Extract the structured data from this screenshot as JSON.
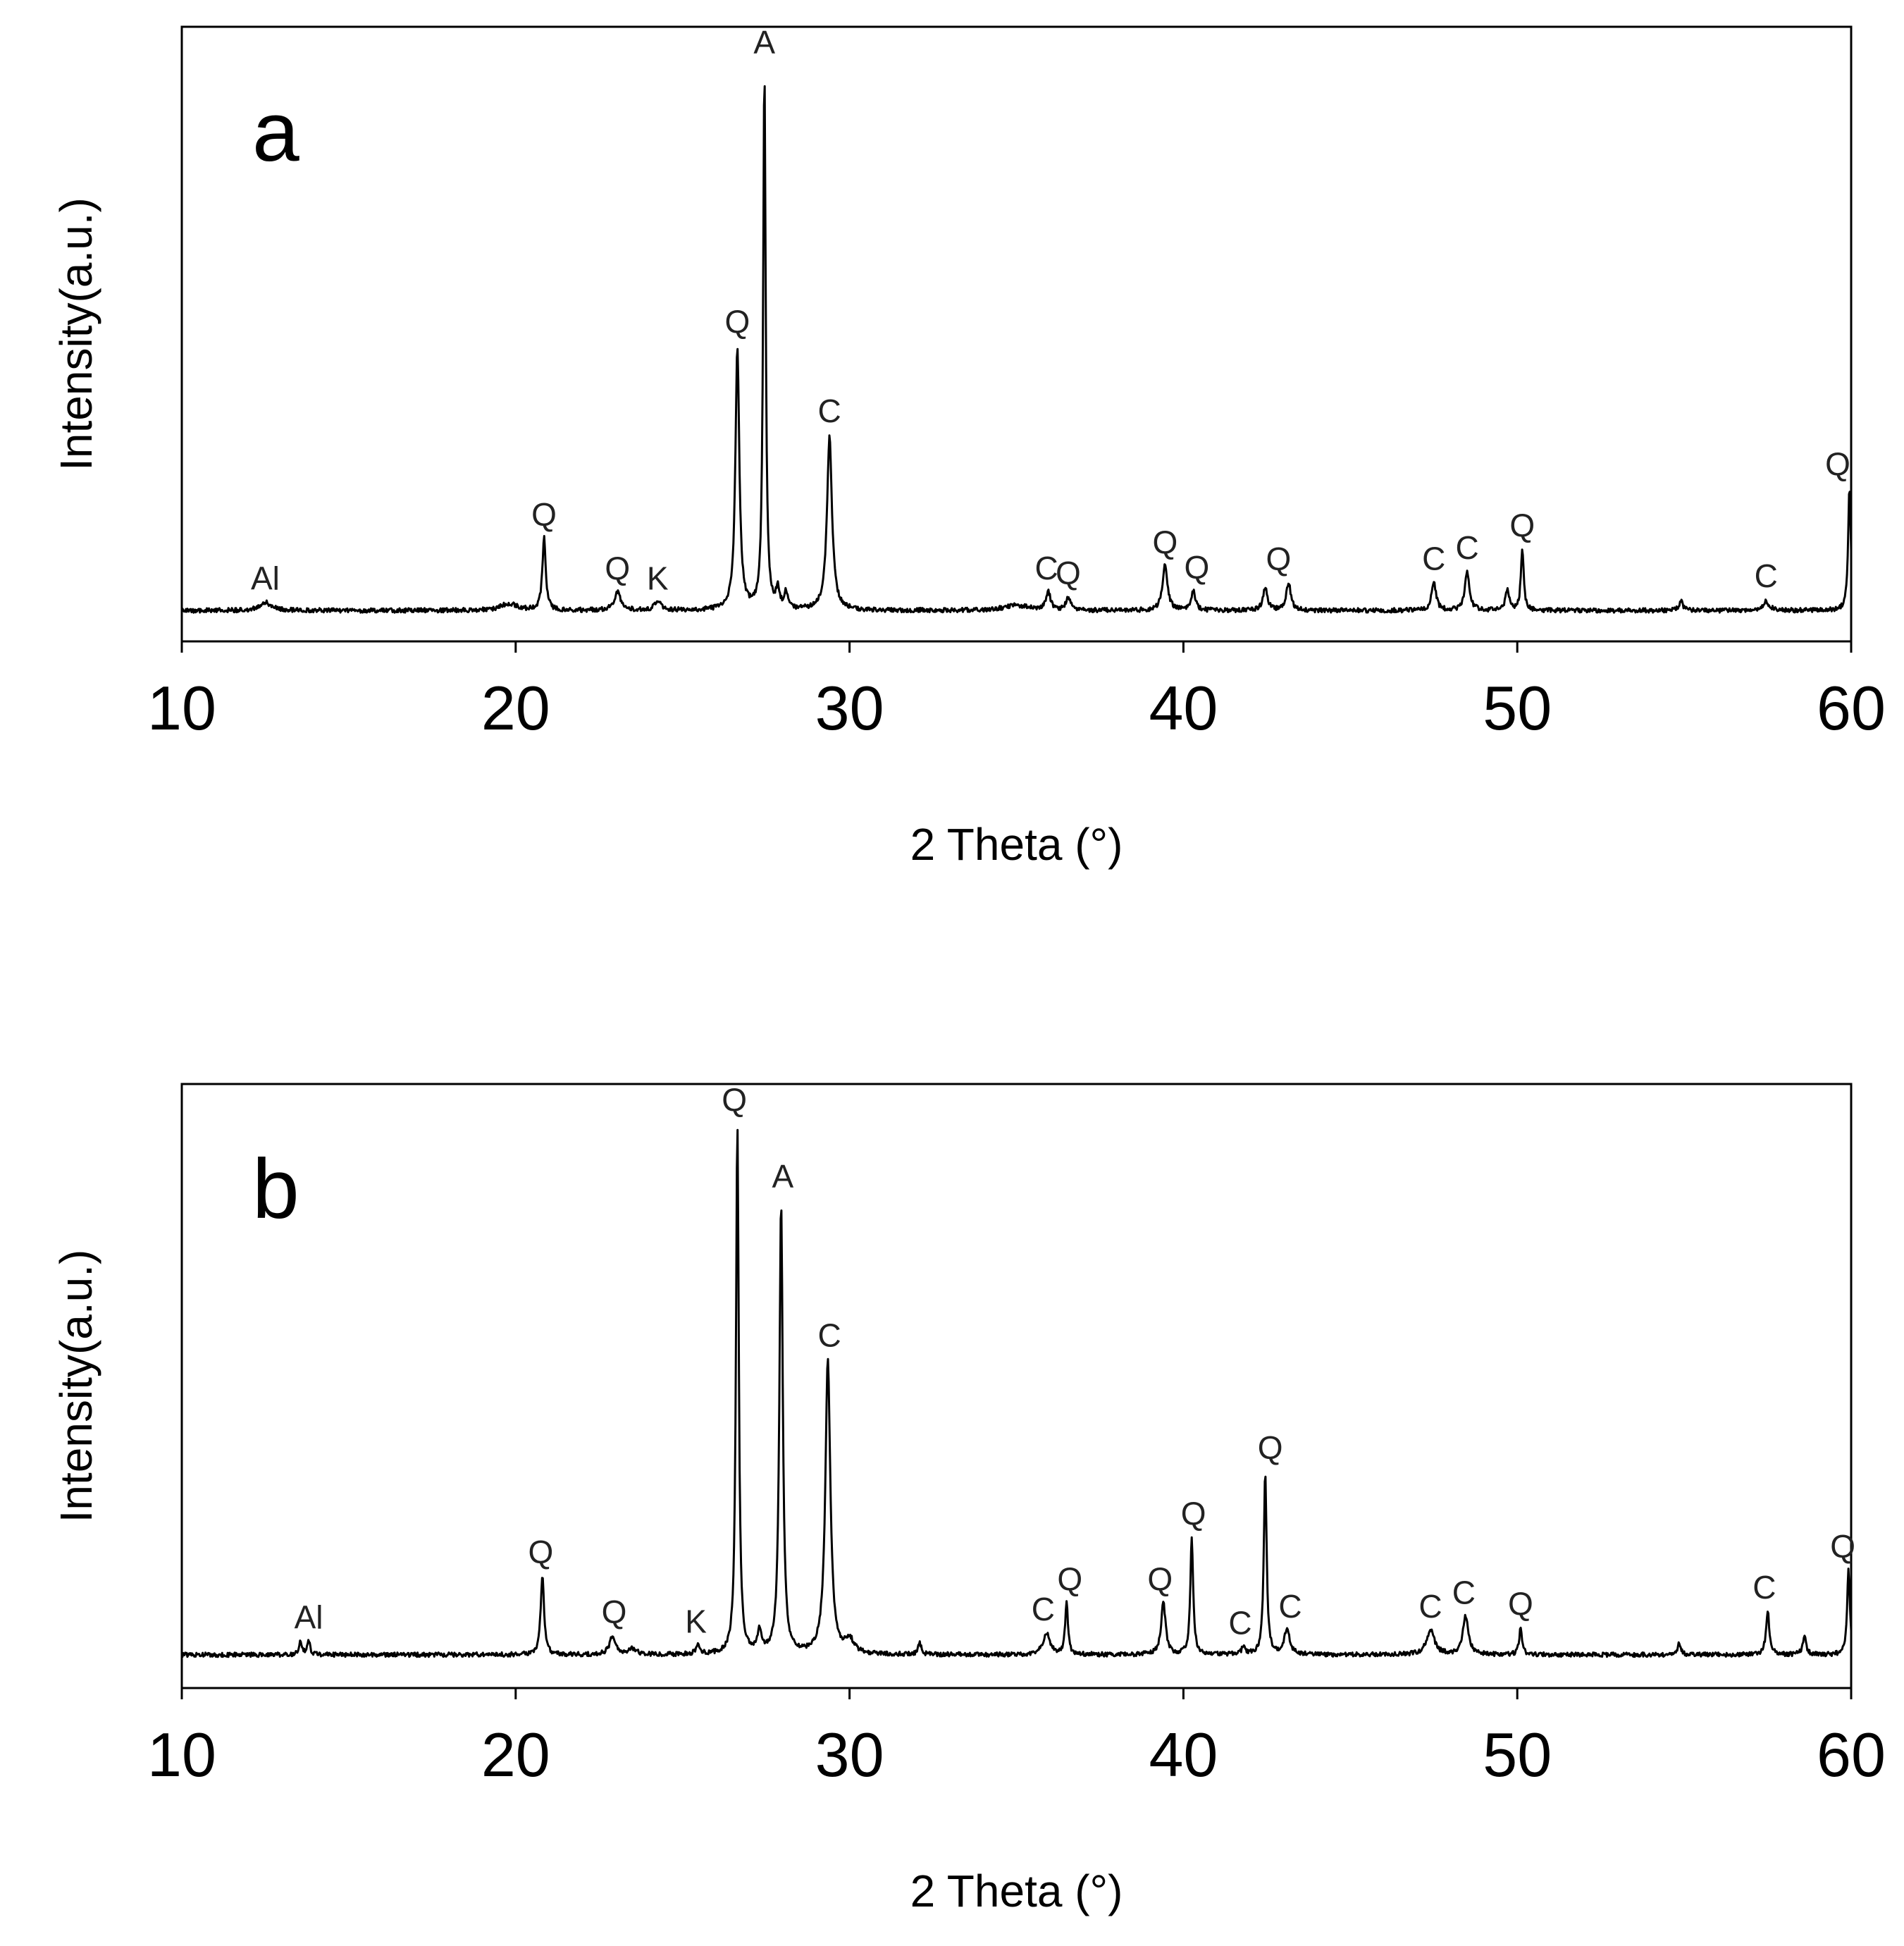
{
  "chart_data": [
    {
      "type": "line",
      "panel": "a",
      "xlabel": "2 Theta (°)",
      "ylabel": "Intensity(a.u.)",
      "xlim": [
        10,
        60
      ],
      "ylim": [
        0,
        100
      ],
      "xticks": [
        "10",
        "20",
        "30",
        "40",
        "50",
        "60"
      ],
      "baseline": 3,
      "peaks": [
        {
          "x": 12.5,
          "y": 4.5,
          "w": 0.2
        },
        {
          "x": 19.8,
          "y": 4.2,
          "w": 0.3
        },
        {
          "x": 20.85,
          "y": 16,
          "w": 0.06
        },
        {
          "x": 23.05,
          "y": 6.2,
          "w": 0.12
        },
        {
          "x": 24.25,
          "y": 4.8,
          "w": 0.1
        },
        {
          "x": 26.64,
          "y": 50,
          "w": 0.07
        },
        {
          "x": 27.45,
          "y": 100,
          "w": 0.045
        },
        {
          "x": 27.85,
          "y": 6.5,
          "w": 0.06
        },
        {
          "x": 28.1,
          "y": 6,
          "w": 0.06
        },
        {
          "x": 29.4,
          "y": 34,
          "w": 0.09
        },
        {
          "x": 35.0,
          "y": 3.9,
          "w": 0.45
        },
        {
          "x": 35.95,
          "y": 6.3,
          "w": 0.08
        },
        {
          "x": 36.55,
          "y": 5.3,
          "w": 0.08
        },
        {
          "x": 39.45,
          "y": 11,
          "w": 0.09
        },
        {
          "x": 40.3,
          "y": 6.5,
          "w": 0.07
        },
        {
          "x": 42.45,
          "y": 7,
          "w": 0.08
        },
        {
          "x": 43.15,
          "y": 8,
          "w": 0.08
        },
        {
          "x": 47.5,
          "y": 8,
          "w": 0.08
        },
        {
          "x": 48.5,
          "y": 10,
          "w": 0.08
        },
        {
          "x": 49.7,
          "y": 6.5,
          "w": 0.07
        },
        {
          "x": 50.15,
          "y": 14,
          "w": 0.05
        },
        {
          "x": 54.9,
          "y": 4.7,
          "w": 0.07
        },
        {
          "x": 57.45,
          "y": 4.6,
          "w": 0.12
        },
        {
          "x": 59.95,
          "y": 25,
          "w": 0.05
        }
      ],
      "annotations": [
        {
          "text": "Al",
          "x": 12.5,
          "y": 5
        },
        {
          "text": "Q",
          "x": 20.85,
          "y": 16.5
        },
        {
          "text": "Q",
          "x": 23.05,
          "y": 6.8
        },
        {
          "text": "K",
          "x": 24.25,
          "y": 5
        },
        {
          "text": "Q",
          "x": 26.64,
          "y": 51
        },
        {
          "text": "A",
          "x": 27.45,
          "y": 101
        },
        {
          "text": "C",
          "x": 29.4,
          "y": 35
        },
        {
          "text": "C",
          "x": 35.9,
          "y": 6.8
        },
        {
          "text": "Q",
          "x": 36.55,
          "y": 6
        },
        {
          "text": "Q",
          "x": 39.45,
          "y": 11.5
        },
        {
          "text": "Q",
          "x": 40.4,
          "y": 7
        },
        {
          "text": "Q",
          "x": 42.85,
          "y": 8.5
        },
        {
          "text": "C",
          "x": 47.5,
          "y": 8.5
        },
        {
          "text": "C",
          "x": 48.5,
          "y": 10.5
        },
        {
          "text": "Q",
          "x": 50.15,
          "y": 14.5
        },
        {
          "text": "C",
          "x": 57.45,
          "y": 5.4
        },
        {
          "text": "Q",
          "x": 59.6,
          "y": 25.5
        }
      ]
    },
    {
      "type": "line",
      "panel": "b",
      "xlabel": "2 Theta (°)",
      "ylabel": "Intensity(a.u.)",
      "xlim": [
        10,
        60
      ],
      "ylim": [
        0,
        100
      ],
      "xticks": [
        "10",
        "20",
        "30",
        "40",
        "50",
        "60"
      ],
      "baseline": 3.5,
      "peaks": [
        {
          "x": 13.55,
          "y": 6,
          "w": 0.05
        },
        {
          "x": 13.8,
          "y": 6,
          "w": 0.05
        },
        {
          "x": 20.8,
          "y": 18,
          "w": 0.06
        },
        {
          "x": 22.9,
          "y": 7,
          "w": 0.1
        },
        {
          "x": 23.5,
          "y": 4.5,
          "w": 0.15
        },
        {
          "x": 25.45,
          "y": 5.2,
          "w": 0.06
        },
        {
          "x": 26.64,
          "y": 100,
          "w": 0.05
        },
        {
          "x": 27.3,
          "y": 7.5,
          "w": 0.07
        },
        {
          "x": 27.95,
          "y": 86,
          "w": 0.06
        },
        {
          "x": 29.35,
          "y": 57,
          "w": 0.09
        },
        {
          "x": 30.0,
          "y": 6,
          "w": 0.15
        },
        {
          "x": 32.1,
          "y": 5.5,
          "w": 0.06
        },
        {
          "x": 35.9,
          "y": 7.5,
          "w": 0.12
        },
        {
          "x": 36.5,
          "y": 13,
          "w": 0.05
        },
        {
          "x": 39.4,
          "y": 13,
          "w": 0.08
        },
        {
          "x": 40.25,
          "y": 25,
          "w": 0.05
        },
        {
          "x": 41.8,
          "y": 5,
          "w": 0.06
        },
        {
          "x": 42.45,
          "y": 37,
          "w": 0.05
        },
        {
          "x": 43.1,
          "y": 8,
          "w": 0.1
        },
        {
          "x": 47.4,
          "y": 8,
          "w": 0.14
        },
        {
          "x": 48.45,
          "y": 10.5,
          "w": 0.1
        },
        {
          "x": 50.1,
          "y": 8.5,
          "w": 0.05
        },
        {
          "x": 54.85,
          "y": 5.5,
          "w": 0.06
        },
        {
          "x": 57.5,
          "y": 11.5,
          "w": 0.06
        },
        {
          "x": 58.6,
          "y": 7,
          "w": 0.06
        },
        {
          "x": 59.92,
          "y": 19,
          "w": 0.05
        }
      ],
      "annotations": [
        {
          "text": "Al",
          "x": 13.8,
          "y": 6.5
        },
        {
          "text": "Q",
          "x": 20.75,
          "y": 18.5
        },
        {
          "text": "Q",
          "x": 22.95,
          "y": 7.5
        },
        {
          "text": "K",
          "x": 25.4,
          "y": 5.7
        },
        {
          "text": "Q",
          "x": 26.55,
          "y": 101
        },
        {
          "text": "A",
          "x": 28.0,
          "y": 87
        },
        {
          "text": "C",
          "x": 29.4,
          "y": 58
        },
        {
          "text": "C",
          "x": 35.8,
          "y": 8
        },
        {
          "text": "Q",
          "x": 36.6,
          "y": 13.5
        },
        {
          "text": "Q",
          "x": 39.3,
          "y": 13.5
        },
        {
          "text": "Q",
          "x": 40.3,
          "y": 25.5
        },
        {
          "text": "C",
          "x": 41.7,
          "y": 5.5
        },
        {
          "text": "Q",
          "x": 42.6,
          "y": 37.5
        },
        {
          "text": "C",
          "x": 43.2,
          "y": 8.5
        },
        {
          "text": "C",
          "x": 47.4,
          "y": 8.5
        },
        {
          "text": "C",
          "x": 48.4,
          "y": 11
        },
        {
          "text": "Q",
          "x": 50.1,
          "y": 9
        },
        {
          "text": "C",
          "x": 57.4,
          "y": 12
        },
        {
          "text": "Q",
          "x": 59.75,
          "y": 19.5
        }
      ]
    }
  ]
}
